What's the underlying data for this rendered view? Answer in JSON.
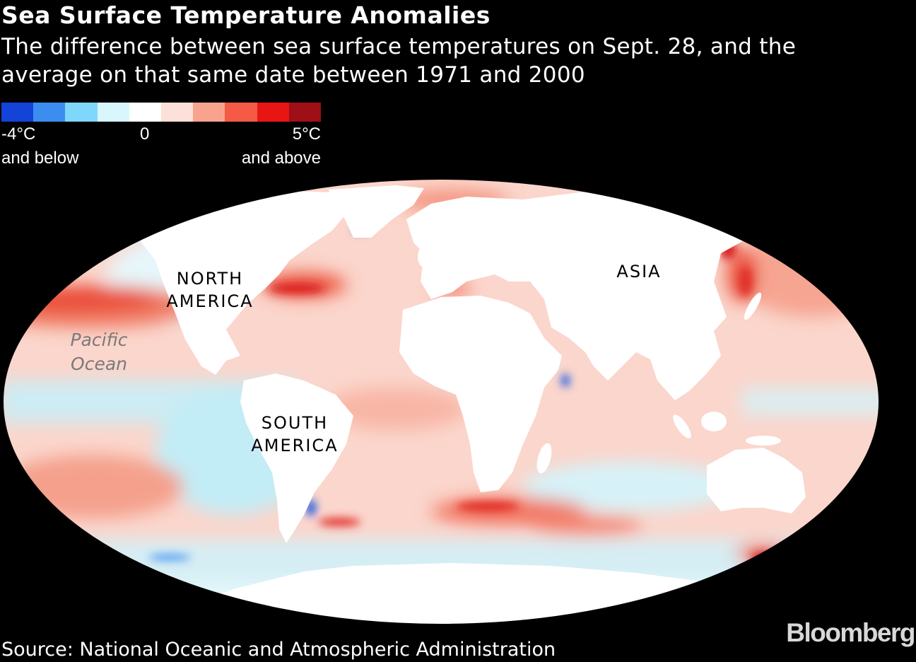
{
  "header": {
    "title": "Sea Surface Temperature Anomalies",
    "subtitle": "The difference between sea surface temperatures on Sept. 28, and the average on that same date between 1971 and 2000"
  },
  "legend": {
    "colors": [
      "#1443d8",
      "#3b8ef0",
      "#7fd8fb",
      "#d8f6fb",
      "#ffffff",
      "#fde0d8",
      "#f9a38e",
      "#f45a45",
      "#e81515",
      "#9e0f18"
    ],
    "low_value": "-4°C",
    "low_note": "and below",
    "mid_value": "0",
    "high_value": "5°C",
    "high_note": "and above"
  },
  "map": {
    "labels": {
      "north_america": [
        "NORTH",
        "AMERICA"
      ],
      "south_america": [
        "SOUTH",
        "AMERICA"
      ],
      "asia": "ASIA",
      "pacific_ocean": [
        "Pacific",
        "Ocean"
      ]
    },
    "land_color": "#ffffff",
    "ocean_base_color": "#fbd6cc"
  },
  "footer": {
    "source": "Source: National Oceanic and Atmospheric Administration",
    "brand": "Bloomberg"
  }
}
